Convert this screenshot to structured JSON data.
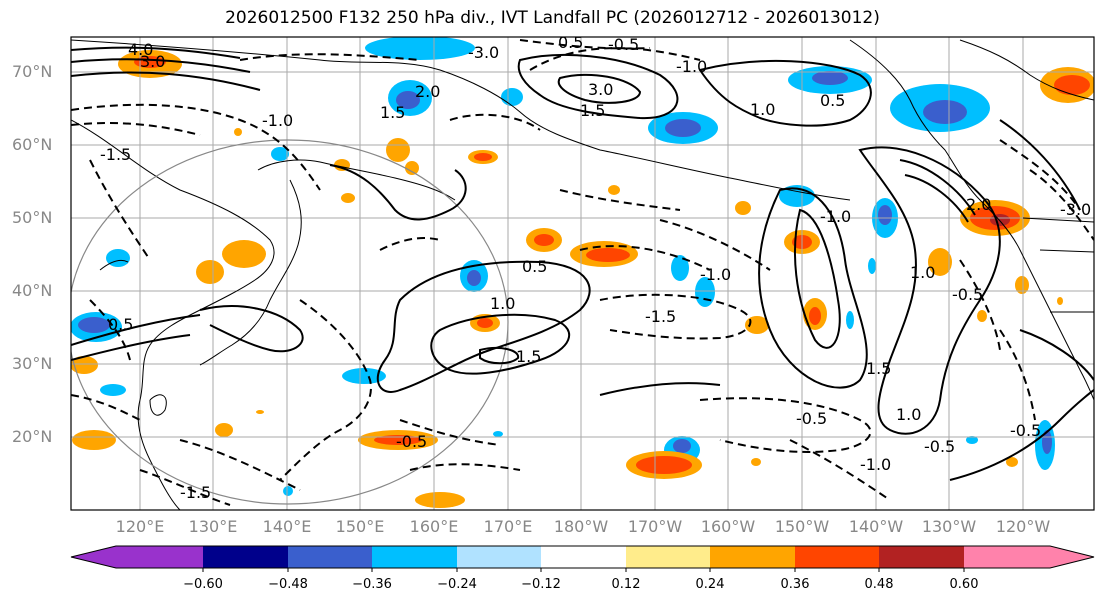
{
  "title": "2026012500 F132 250 hPa div., IVT Landfall PC (2026012712 - 2026013012)",
  "lat_labels": [
    "70°N",
    "60°N",
    "50°N",
    "40°N",
    "30°N",
    "20°N"
  ],
  "lon_labels": [
    "120°E",
    "130°E",
    "140°E",
    "150°E",
    "160°E",
    "170°E",
    "180°W",
    "170°W",
    "160°W",
    "150°W",
    "140°W",
    "130°W",
    "120°W"
  ],
  "colorbar": {
    "tick_labels": [
      "−0.60",
      "−0.48",
      "−0.36",
      "−0.24",
      "−0.12",
      "0.12",
      "0.24",
      "0.36",
      "0.48",
      "0.60"
    ],
    "colors": [
      "#9932cc",
      "#00008b",
      "#3a5fcd",
      "#00bfff",
      "#b0e2ff",
      "#ffffff",
      "#ffec8b",
      "#ffa500",
      "#ff4500",
      "#b22222",
      "#ff82ab"
    ]
  },
  "contour_labels": [
    "4.0",
    "3.0",
    "2.0",
    "1.5",
    "1.0",
    "-1.0",
    "-1.5",
    "0.5",
    "-0.5",
    "0.5",
    "1.0",
    "0.5",
    "-0.5",
    "-1.0",
    "-1.5",
    "-1.0",
    "1.0",
    "1.5",
    "1.5",
    "-0.5",
    "-1.0",
    "-0.5",
    "3.0",
    "-3.0",
    "-1.0",
    "-0.5",
    "-1.5",
    "-0.5",
    "-3.0",
    "2.0",
    "0.5",
    "1.5",
    "1.0"
  ]
}
